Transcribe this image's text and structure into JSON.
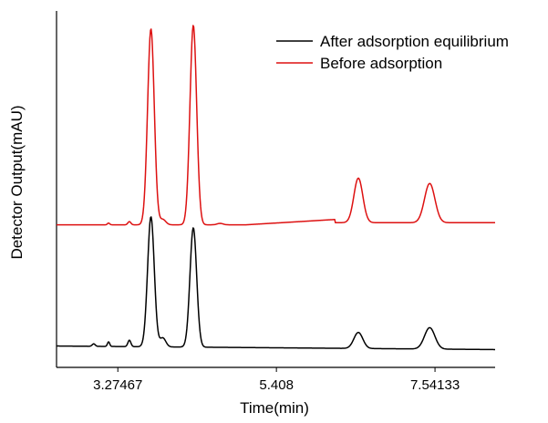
{
  "chart_data": {
    "type": "line",
    "xlabel": "Time(min)",
    "ylabel": "Detector Output(mAU)",
    "xlim": [
      2.45,
      8.35
    ],
    "x_ticks": [
      "3.27467",
      "5.408",
      "7.54133"
    ],
    "x_tick_values": [
      3.27467,
      5.408,
      7.54133
    ],
    "ylim": [
      0,
      100
    ],
    "y_tick_labels_shown": false,
    "grid": false,
    "legend_position": "top-right",
    "series": [
      {
        "name": "After adsorption equilibrium",
        "color": "#000000",
        "baseline": 6,
        "drift_start": 6,
        "drift_end": 5,
        "peaks": [
          {
            "time": 2.95,
            "height": 0.7,
            "width": 0.02
          },
          {
            "time": 3.15,
            "height": 1.3,
            "width": 0.015
          },
          {
            "time": 3.43,
            "height": 1.8,
            "width": 0.02
          },
          {
            "time": 3.72,
            "height": 36.5,
            "width": 0.045
          },
          {
            "time": 3.88,
            "height": 2.5,
            "width": 0.04
          },
          {
            "time": 4.29,
            "height": 33.5,
            "width": 0.045
          },
          {
            "time": 6.51,
            "height": 4.5,
            "width": 0.06
          },
          {
            "time": 7.47,
            "height": 6.0,
            "width": 0.07
          }
        ]
      },
      {
        "name": "Before adsorption",
        "color": "#dd1111",
        "baseline": 40,
        "drift_start": 40,
        "drift_end": 40,
        "peaks": [
          {
            "time": 3.15,
            "height": 0.5,
            "width": 0.015
          },
          {
            "time": 3.43,
            "height": 0.9,
            "width": 0.02
          },
          {
            "time": 3.72,
            "height": 55.0,
            "width": 0.045
          },
          {
            "time": 3.88,
            "height": 1.5,
            "width": 0.04
          },
          {
            "time": 4.29,
            "height": 56.0,
            "width": 0.045
          },
          {
            "time": 4.65,
            "height": 0.4,
            "width": 0.04
          },
          {
            "time": 6.51,
            "height": 12.5,
            "width": 0.06
          },
          {
            "time": 7.47,
            "height": 11.0,
            "width": 0.07
          }
        ],
        "plateau": {
          "start": 5.0,
          "end": 6.2,
          "peak_at": 6.2,
          "rise": 1.5,
          "level_after": 1.0
        }
      }
    ]
  }
}
